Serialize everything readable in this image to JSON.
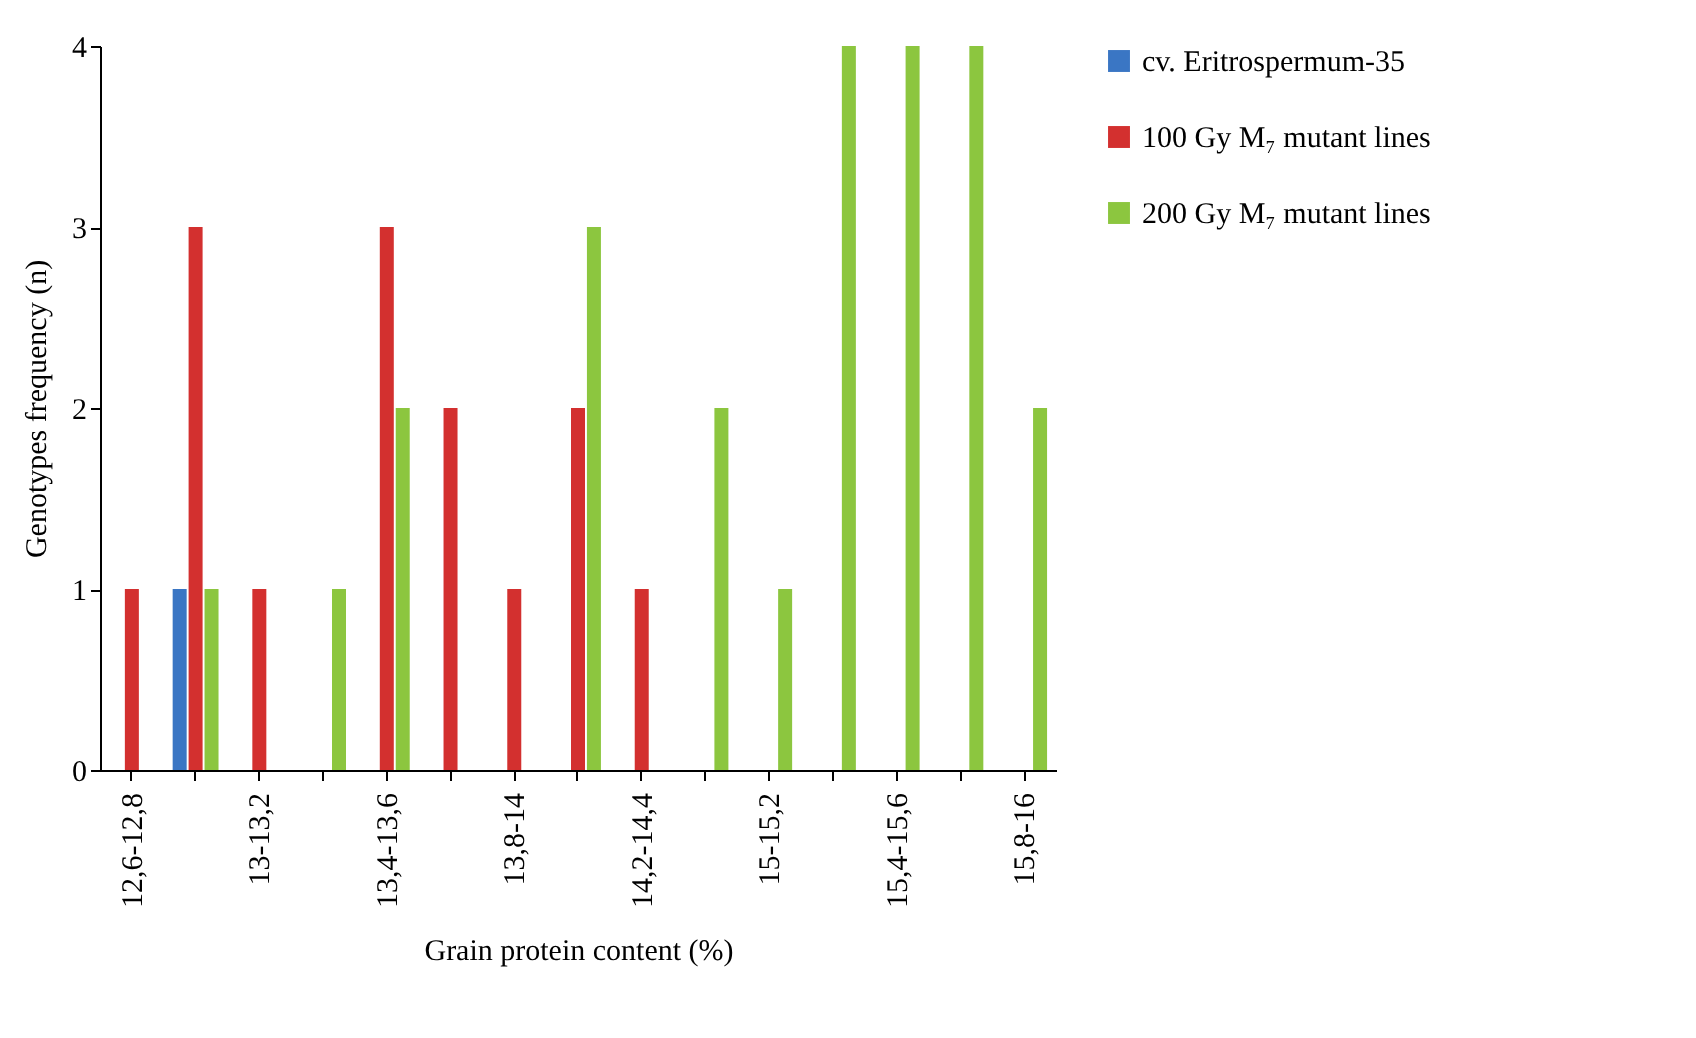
{
  "chart_data": {
    "type": "bar",
    "xlabel": "Grain protein content (%)",
    "ylabel": "Genotypes frequency (n)",
    "categories": [
      "12,6-12,8",
      null,
      "13-13,2",
      null,
      "13,4-13,6",
      null,
      "13,8-14",
      null,
      "14,2-14,4",
      null,
      "15-15,2",
      null,
      "15,4-15,6",
      null,
      "15,8-16"
    ],
    "series": [
      {
        "name": "cv. Eritrospermum-35",
        "color": "#3a76c4",
        "values": [
          0,
          1,
          0,
          0,
          0,
          0,
          0,
          0,
          0,
          0,
          0,
          0,
          0,
          0,
          0
        ]
      },
      {
        "name": "100 Gy M₇ mutant lines",
        "color": "#d3302f",
        "values": [
          1,
          3,
          1,
          0,
          3,
          2,
          1,
          2,
          1,
          0,
          0,
          0,
          0,
          0,
          0
        ]
      },
      {
        "name": "200 Gy M₇ mutant lines",
        "color": "#8cc63f",
        "values": [
          0,
          1,
          0,
          1,
          2,
          0,
          0,
          3,
          0,
          2,
          1,
          4,
          4,
          4,
          2
        ]
      }
    ],
    "ylim": [
      0,
      4
    ],
    "yticks": [
      0,
      1,
      2,
      3,
      4
    ],
    "legend": "right"
  }
}
